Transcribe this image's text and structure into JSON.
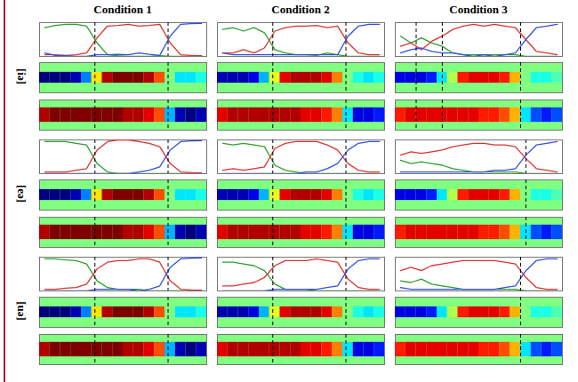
{
  "chart_data": {
    "type": "panel_grid",
    "columns": [
      "Condition 1",
      "Condition 2",
      "Condition 3"
    ],
    "rows": [
      "[iə]",
      "[eə]",
      "[uə]"
    ],
    "xlim": [
      -0.5,
      15.5
    ],
    "ylim": [
      0,
      100
    ],
    "tick_labels": false,
    "colorscale": {
      "range": [
        -1,
        1
      ]
    },
    "panels": [
      [
        {
          "series": [
            {
              "type": "line",
              "color": "#2ca02c",
              "values": [
                85,
                92,
                95,
                95,
                90,
                40,
                5,
                2,
                0,
                0,
                0,
                2,
                0,
                0,
                0,
                0
              ]
            },
            {
              "type": "line",
              "color": "#e03030",
              "values": [
                5,
                5,
                3,
                5,
                10,
                55,
                90,
                92,
                95,
                90,
                92,
                95,
                40,
                5,
                3,
                2
              ]
            },
            {
              "type": "line",
              "color": "#3050e0",
              "values": [
                10,
                3,
                2,
                0,
                0,
                5,
                5,
                6,
                5,
                10,
                6,
                3,
                60,
                95,
                97,
                98
              ]
            }
          ],
          "boundaries": [
            4.8,
            11.8
          ],
          "strips": [
            [
              -1,
              -1,
              -1,
              -0.9,
              -0.5,
              0.3,
              0.9,
              1,
              1,
              1,
              0.9,
              0.6,
              0,
              -0.3,
              -0.3,
              -0.2
            ],
            [
              0.9,
              1,
              1,
              1,
              1,
              1,
              1,
              1,
              0.9,
              0.9,
              0.8,
              0.6,
              -0.4,
              -0.9,
              -1,
              -0.9
            ]
          ]
        },
        {
          "series": [
            {
              "type": "line",
              "color": "#2ca02c",
              "values": [
                80,
                85,
                75,
                85,
                70,
                20,
                10,
                5,
                5,
                3,
                10,
                5,
                0,
                0,
                0,
                0
              ]
            },
            {
              "type": "line",
              "color": "#e03030",
              "values": [
                10,
                10,
                20,
                10,
                25,
                75,
                85,
                90,
                90,
                92,
                85,
                90,
                40,
                10,
                5,
                5
              ]
            },
            {
              "type": "line",
              "color": "#3050e0",
              "values": [
                10,
                5,
                5,
                5,
                5,
                5,
                5,
                5,
                5,
                5,
                5,
                5,
                60,
                90,
                95,
                95
              ]
            }
          ],
          "boundaries": [
            4.8,
            11.8
          ],
          "strips": [
            [
              -0.9,
              -0.9,
              -0.9,
              -0.8,
              -0.4,
              0.2,
              0.8,
              0.9,
              0.9,
              0.9,
              0.8,
              0.5,
              0,
              -0.2,
              -0.3,
              -0.2
            ],
            [
              0.8,
              0.9,
              0.9,
              0.9,
              0.9,
              0.9,
              0.9,
              0.9,
              0.8,
              0.8,
              0.7,
              0.5,
              -0.3,
              -0.8,
              -0.8,
              -0.7
            ]
          ]
        },
        {
          "series": [
            {
              "type": "line",
              "color": "#2ca02c",
              "values": [
                60,
                40,
                55,
                40,
                30,
                10,
                5,
                5,
                5,
                5,
                5,
                5,
                0,
                0,
                0,
                0
              ]
            },
            {
              "type": "line",
              "color": "#e03030",
              "values": [
                30,
                40,
                20,
                45,
                60,
                80,
                90,
                95,
                90,
                95,
                90,
                85,
                50,
                15,
                10,
                5
              ]
            },
            {
              "type": "line",
              "color": "#3050e0",
              "values": [
                10,
                20,
                25,
                15,
                10,
                10,
                5,
                0,
                5,
                0,
                5,
                10,
                50,
                85,
                90,
                95
              ]
            }
          ],
          "boundaries": [
            1.5,
            4,
            11.5
          ],
          "strips": [
            [
              -0.8,
              -0.8,
              -0.8,
              -0.7,
              -0.3,
              0.1,
              0.7,
              0.8,
              0.8,
              0.8,
              0.7,
              0.4,
              0,
              -0.2,
              -0.2,
              -0.1
            ],
            [
              0.7,
              0.8,
              0.8,
              0.8,
              0.8,
              0.8,
              0.8,
              0.8,
              0.7,
              0.7,
              0.6,
              0.4,
              -0.3,
              -0.6,
              -0.7,
              -0.6
            ]
          ]
        }
      ],
      [
        {
          "series": [
            {
              "type": "line",
              "color": "#2ca02c",
              "values": [
                95,
                95,
                95,
                90,
                85,
                30,
                5,
                0,
                0,
                0,
                0,
                0,
                0,
                0,
                0,
                0
              ]
            },
            {
              "type": "line",
              "color": "#e03030",
              "values": [
                5,
                5,
                5,
                10,
                15,
                70,
                95,
                100,
                100,
                95,
                90,
                80,
                30,
                5,
                3,
                2
              ]
            },
            {
              "type": "line",
              "color": "#3050e0",
              "values": [
                0,
                0,
                0,
                0,
                0,
                0,
                0,
                0,
                0,
                5,
                10,
                20,
                70,
                95,
                97,
                98
              ]
            }
          ],
          "boundaries": [
            4.8,
            11.8
          ],
          "strips": [
            [
              -1,
              -1,
              -1,
              -0.9,
              -0.5,
              0.3,
              0.9,
              1,
              1,
              1,
              0.9,
              0.6,
              0,
              -0.3,
              -0.3,
              -0.2
            ],
            [
              0.9,
              1,
              1,
              1,
              1,
              1,
              1,
              1,
              0.9,
              0.9,
              0.8,
              0.6,
              -0.4,
              -0.9,
              -1,
              -0.9
            ]
          ]
        },
        {
          "series": [
            {
              "type": "line",
              "color": "#2ca02c",
              "values": [
                90,
                85,
                90,
                85,
                80,
                25,
                10,
                5,
                0,
                0,
                0,
                0,
                0,
                0,
                0,
                0
              ]
            },
            {
              "type": "line",
              "color": "#e03030",
              "values": [
                10,
                15,
                10,
                15,
                20,
                75,
                90,
                95,
                95,
                95,
                85,
                70,
                30,
                10,
                5,
                5
              ]
            },
            {
              "type": "line",
              "color": "#3050e0",
              "values": [
                0,
                0,
                0,
                0,
                0,
                0,
                0,
                0,
                5,
                5,
                15,
                30,
                70,
                90,
                95,
                95
              ]
            }
          ],
          "boundaries": [
            4.8,
            11.8
          ],
          "strips": [
            [
              -0.9,
              -0.9,
              -0.9,
              -0.8,
              -0.4,
              0.2,
              0.8,
              0.9,
              0.9,
              0.9,
              0.8,
              0.5,
              0,
              -0.2,
              -0.3,
              -0.2
            ],
            [
              0.8,
              0.9,
              0.9,
              0.9,
              0.9,
              0.9,
              0.9,
              0.9,
              0.8,
              0.8,
              0.7,
              0.5,
              -0.3,
              -0.8,
              -0.8,
              -0.7
            ]
          ]
        },
        {
          "series": [
            {
              "type": "line",
              "color": "#2ca02c",
              "values": [
                40,
                30,
                35,
                30,
                25,
                15,
                10,
                5,
                5,
                5,
                5,
                5,
                0,
                0,
                0,
                0
              ]
            },
            {
              "type": "line",
              "color": "#e03030",
              "values": [
                55,
                65,
                60,
                65,
                70,
                80,
                85,
                90,
                90,
                85,
                85,
                80,
                45,
                15,
                10,
                5
              ]
            },
            {
              "type": "line",
              "color": "#3050e0",
              "values": [
                5,
                5,
                5,
                5,
                5,
                5,
                5,
                5,
                5,
                10,
                10,
                15,
                55,
                85,
                90,
                95
              ]
            }
          ],
          "boundaries": [
            12
          ],
          "strips": [
            [
              -0.8,
              -0.8,
              -0.8,
              -0.7,
              -0.3,
              0.1,
              0.7,
              0.8,
              0.8,
              0.8,
              0.7,
              0.4,
              0,
              -0.2,
              -0.2,
              -0.1
            ],
            [
              0.7,
              0.8,
              0.8,
              0.8,
              0.8,
              0.8,
              0.8,
              0.8,
              0.7,
              0.7,
              0.6,
              0.4,
              -0.3,
              -0.6,
              -0.7,
              -0.6
            ]
          ]
        }
      ],
      [
        {
          "series": [
            {
              "type": "line",
              "color": "#2ca02c",
              "values": [
                95,
                95,
                92,
                90,
                80,
                30,
                10,
                5,
                5,
                5,
                0,
                0,
                0,
                0,
                0,
                0
              ]
            },
            {
              "type": "line",
              "color": "#e03030",
              "values": [
                5,
                5,
                8,
                10,
                20,
                65,
                85,
                90,
                90,
                95,
                95,
                85,
                30,
                5,
                3,
                2
              ]
            },
            {
              "type": "line",
              "color": "#3050e0",
              "values": [
                0,
                0,
                0,
                0,
                0,
                5,
                5,
                5,
                5,
                0,
                5,
                15,
                70,
                95,
                97,
                98
              ]
            }
          ],
          "boundaries": [
            4.8,
            11.8
          ],
          "strips": [
            [
              -1,
              -1,
              -1,
              -0.9,
              -0.5,
              0.3,
              0.9,
              1,
              1,
              1,
              0.9,
              0.6,
              0,
              -0.3,
              -0.3,
              -0.2
            ],
            [
              0.9,
              1,
              1,
              1,
              1,
              1,
              1,
              1,
              0.9,
              0.9,
              0.8,
              0.6,
              -0.4,
              -0.9,
              -1,
              -0.9
            ]
          ]
        },
        {
          "series": [
            {
              "type": "line",
              "color": "#2ca02c",
              "values": [
                85,
                85,
                80,
                75,
                60,
                20,
                5,
                5,
                5,
                0,
                0,
                0,
                0,
                0,
                0,
                0
              ]
            },
            {
              "type": "line",
              "color": "#e03030",
              "values": [
                15,
                15,
                20,
                25,
                40,
                75,
                90,
                90,
                90,
                95,
                90,
                85,
                35,
                10,
                5,
                5
              ]
            },
            {
              "type": "line",
              "color": "#3050e0",
              "values": [
                0,
                0,
                0,
                0,
                0,
                5,
                5,
                5,
                5,
                5,
                10,
                15,
                65,
                90,
                95,
                95
              ]
            }
          ],
          "boundaries": [
            4.8,
            11.8
          ],
          "strips": [
            [
              -0.9,
              -0.9,
              -0.9,
              -0.8,
              -0.4,
              0.2,
              0.8,
              0.9,
              0.9,
              0.9,
              0.8,
              0.5,
              0,
              -0.2,
              -0.3,
              -0.2
            ],
            [
              0.8,
              0.9,
              0.9,
              0.9,
              0.9,
              0.9,
              0.9,
              0.9,
              0.8,
              0.8,
              0.7,
              0.5,
              -0.3,
              -0.8,
              -0.8,
              -0.7
            ]
          ]
        },
        {
          "series": [
            {
              "type": "line",
              "color": "#2ca02c",
              "values": [
                30,
                25,
                35,
                20,
                15,
                10,
                5,
                5,
                5,
                5,
                5,
                5,
                0,
                0,
                0,
                0
              ]
            },
            {
              "type": "line",
              "color": "#e03030",
              "values": [
                60,
                70,
                60,
                75,
                80,
                85,
                90,
                90,
                90,
                90,
                85,
                80,
                40,
                10,
                5,
                5
              ]
            },
            {
              "type": "line",
              "color": "#3050e0",
              "values": [
                10,
                5,
                5,
                5,
                5,
                5,
                5,
                5,
                5,
                5,
                10,
                15,
                60,
                90,
                95,
                95
              ]
            }
          ],
          "boundaries": [
            11.5
          ],
          "strips": [
            [
              -0.8,
              -0.8,
              -0.8,
              -0.7,
              -0.3,
              0.1,
              0.7,
              0.8,
              0.8,
              0.8,
              0.7,
              0.4,
              0,
              -0.2,
              -0.2,
              -0.1
            ],
            [
              0.7,
              0.8,
              0.8,
              0.8,
              0.8,
              0.8,
              0.8,
              0.8,
              0.7,
              0.7,
              0.6,
              0.4,
              -0.3,
              -0.6,
              -0.7,
              -0.6
            ]
          ]
        }
      ]
    ]
  }
}
